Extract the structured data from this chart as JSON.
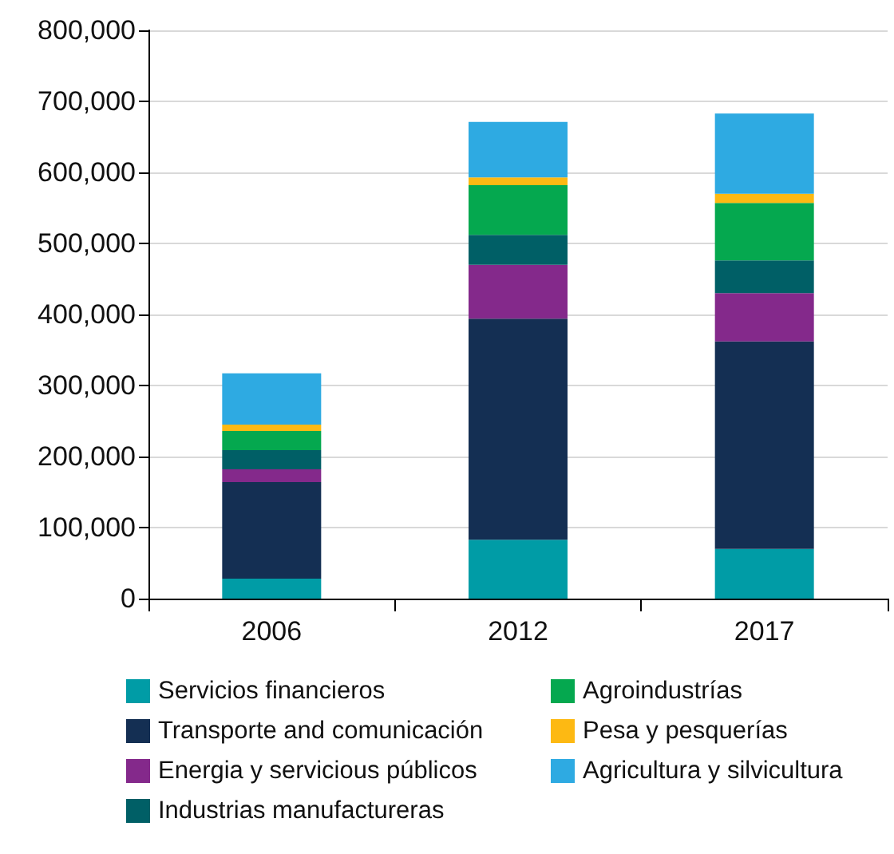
{
  "chart_data": {
    "type": "bar",
    "stacked": true,
    "categories": [
      "2006",
      "2012",
      "2017"
    ],
    "series": [
      {
        "name": "Servicios financieros",
        "color": "#009ca6",
        "values": [
          28000,
          83000,
          70000
        ]
      },
      {
        "name": "Transporte and comunicación",
        "color": "#142f53",
        "values": [
          136000,
          311000,
          292000
        ]
      },
      {
        "name": "Energia y servicious públicos",
        "color": "#84298b",
        "values": [
          18000,
          76000,
          68000
        ]
      },
      {
        "name": "Industrias manufactureras",
        "color": "#005f66",
        "values": [
          27000,
          42000,
          46000
        ]
      },
      {
        "name": "Agroindustrías",
        "color": "#05a84f",
        "values": [
          27000,
          70000,
          81000
        ]
      },
      {
        "name": "Pesa y pesquerías",
        "color": "#fdb913",
        "values": [
          9000,
          11000,
          13000
        ]
      },
      {
        "name": "Agricultura y silvicultura",
        "color": "#2eaae2",
        "values": [
          72000,
          78000,
          113000
        ]
      }
    ],
    "ylim": [
      0,
      800000
    ],
    "yticks": [
      0,
      {
        "value": 100000,
        "label": "100,000"
      },
      {
        "value": 200000,
        "label": "200,000"
      },
      {
        "value": 300000,
        "label": "300,000"
      },
      {
        "value": 400000,
        "label": "400,000"
      },
      {
        "value": 500000,
        "label": "500,000"
      },
      {
        "value": 600000,
        "label": "600,000"
      },
      {
        "value": 700000,
        "label": "700,000"
      },
      {
        "value": 800000,
        "label": "800,000"
      }
    ],
    "grid": "y",
    "legend": "bottom"
  }
}
